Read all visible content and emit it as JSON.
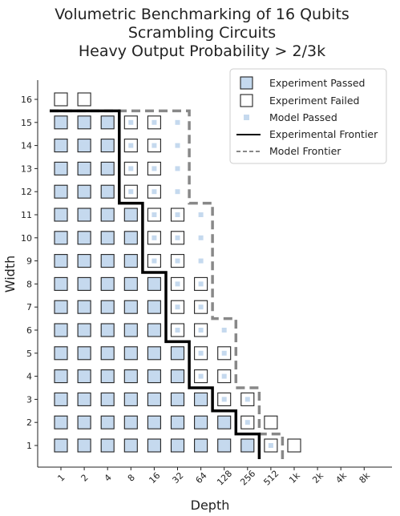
{
  "chart_data": {
    "type": "scatter",
    "title": [
      "Volumetric Benchmarking of 16 Qubits",
      "Scrambling Circuits",
      "Heavy Output Probability > 2/3k"
    ],
    "xlabel": "Depth",
    "ylabel": "Width",
    "x_ticks": [
      "1",
      "2",
      "4",
      "8",
      "16",
      "32",
      "64",
      "128",
      "256",
      "512",
      "1k",
      "2k",
      "4k",
      "8k"
    ],
    "y_ticks": [
      1,
      2,
      3,
      4,
      5,
      6,
      7,
      8,
      9,
      10,
      11,
      12,
      13,
      14,
      15,
      16
    ],
    "grid": false,
    "legend_position": "top-right",
    "legend": [
      "Experiment Passed",
      "Experiment Failed",
      "Model Passed",
      "Experimental Frontier",
      "Model Frontier"
    ],
    "colors": {
      "passed_fill": "#c5d9ee",
      "model_passed": "#c5d9ee",
      "experimental_frontier": "#000000",
      "model_frontier": "#888888"
    },
    "experiment_max_depth_passed": {
      "1": "256",
      "2": "128",
      "3": "64",
      "4": "32",
      "5": "32",
      "6": "16",
      "7": "16",
      "8": "16",
      "9": "8",
      "10": "8",
      "11": "8",
      "12": "4",
      "13": "4",
      "14": "4",
      "15": "4",
      "16": null
    },
    "experiment_max_depth_tested": {
      "1": "1k",
      "2": "512",
      "3": "256",
      "4": "128",
      "5": "128",
      "6": "64",
      "7": "64",
      "8": "64",
      "9": "32",
      "10": "32",
      "11": "32",
      "12": "16",
      "13": "16",
      "14": "16",
      "15": "16",
      "16": "2"
    },
    "model_max_depth_passed": {
      "1": "512",
      "2": "256",
      "3": "256",
      "4": "128",
      "5": "128",
      "6": "128",
      "7": "64",
      "8": "64",
      "9": "64",
      "10": "64",
      "11": "64",
      "12": "32",
      "13": "32",
      "14": "32",
      "15": "32",
      "16": null
    }
  }
}
